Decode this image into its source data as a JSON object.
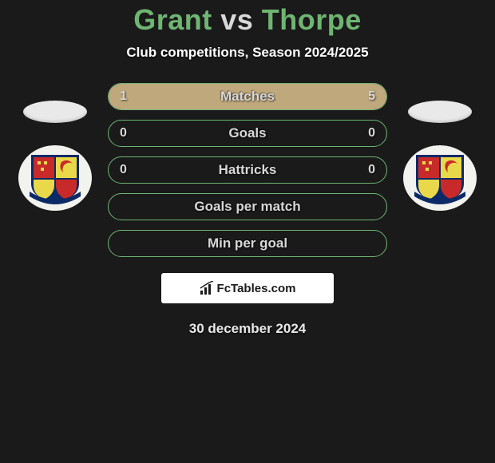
{
  "title": {
    "player1": "Grant",
    "vs": "vs",
    "player2": "Thorpe",
    "player1_color": "#6fb572",
    "player2_color": "#6fb572",
    "vs_color": "#d8d8d8"
  },
  "subtitle": "Club competitions, Season 2024/2025",
  "theme": {
    "background": "#1a1a1a",
    "bar_border_color": "#6fb572",
    "bar_fill_color": "#bfa87c",
    "text_color": "#d8d8d8"
  },
  "stats": [
    {
      "label": "Matches",
      "left_val": "1",
      "right_val": "5",
      "left_fill_pct": 17,
      "right_fill_pct": 83
    },
    {
      "label": "Goals",
      "left_val": "0",
      "right_val": "0",
      "left_fill_pct": 0,
      "right_fill_pct": 0
    },
    {
      "label": "Hattricks",
      "left_val": "0",
      "right_val": "0",
      "left_fill_pct": 0,
      "right_fill_pct": 0
    },
    {
      "label": "Goals per match",
      "left_val": "",
      "right_val": "",
      "left_fill_pct": 0,
      "right_fill_pct": 0
    },
    {
      "label": "Min per goal",
      "left_val": "",
      "right_val": "",
      "left_fill_pct": 0,
      "right_fill_pct": 0
    }
  ],
  "brand": "FcTables.com",
  "date": "30 december 2024",
  "crest": {
    "circle_color": "#f2f2ef",
    "quad_colors": [
      "#c82a2a",
      "#e9d94a",
      "#e9d94a",
      "#c82a2a"
    ],
    "border_color": "#0c2a66",
    "banner_color": "#0c2a66"
  }
}
